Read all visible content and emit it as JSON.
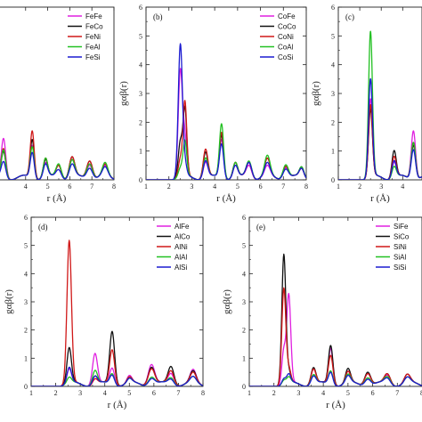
{
  "chart_data": [
    {
      "id": "a",
      "type": "line",
      "tag": "",
      "xlabel": "r (Å)",
      "ylabel": "",
      "xlim": [
        2.8,
        8
      ],
      "ylim": [
        0,
        6
      ],
      "x_ticks": [
        4,
        5,
        6,
        7,
        8
      ],
      "y_ticks": [],
      "legend": "top-right",
      "series": [
        {
          "name": "FeFe",
          "color": "#e020e0",
          "peaks": [
            [
              3.0,
              1.35,
              0.1
            ],
            [
              4.3,
              1.15,
              0.09
            ],
            [
              4.9,
              0.5,
              0.1
            ],
            [
              5.5,
              0.45,
              0.12
            ],
            [
              6.1,
              0.6,
              0.12
            ],
            [
              6.9,
              0.5,
              0.13
            ],
            [
              7.6,
              0.35,
              0.12
            ]
          ]
        },
        {
          "name": "FeCo",
          "color": "#111111",
          "peaks": [
            [
              3.0,
              0.9,
              0.1
            ],
            [
              4.3,
              1.35,
              0.09
            ],
            [
              4.9,
              0.6,
              0.1
            ],
            [
              5.5,
              0.45,
              0.12
            ],
            [
              6.1,
              0.7,
              0.12
            ],
            [
              6.9,
              0.65,
              0.13
            ],
            [
              7.6,
              0.4,
              0.12
            ]
          ]
        },
        {
          "name": "FeNi",
          "color": "#d01818",
          "peaks": [
            [
              3.0,
              1.0,
              0.1
            ],
            [
              4.3,
              1.65,
              0.09
            ],
            [
              4.9,
              0.65,
              0.1
            ],
            [
              5.5,
              0.45,
              0.12
            ],
            [
              6.1,
              0.7,
              0.12
            ],
            [
              6.9,
              0.65,
              0.13
            ],
            [
              7.6,
              0.4,
              0.12
            ]
          ]
        },
        {
          "name": "FeAl",
          "color": "#22c022",
          "peaks": [
            [
              3.0,
              0.95,
              0.1
            ],
            [
              4.3,
              1.1,
              0.09
            ],
            [
              4.9,
              0.65,
              0.1
            ],
            [
              5.5,
              0.5,
              0.12
            ],
            [
              6.1,
              0.6,
              0.12
            ],
            [
              6.9,
              0.55,
              0.13
            ],
            [
              7.6,
              0.45,
              0.12
            ]
          ]
        },
        {
          "name": "FeSi",
          "color": "#1a1ad0",
          "peaks": [
            [
              3.0,
              0.55,
              0.1
            ],
            [
              4.3,
              0.9,
              0.09
            ],
            [
              4.9,
              0.45,
              0.1
            ],
            [
              5.5,
              0.3,
              0.12
            ],
            [
              6.1,
              0.45,
              0.12
            ],
            [
              6.9,
              0.4,
              0.13
            ],
            [
              7.6,
              0.3,
              0.12
            ]
          ]
        }
      ]
    },
    {
      "id": "b",
      "type": "line",
      "tag": "(b)",
      "xlabel": "r (Å)",
      "ylabel": "gαβ(r)",
      "xlim": [
        1,
        8
      ],
      "ylim": [
        0,
        6
      ],
      "x_ticks": [
        1,
        2,
        3,
        4,
        5,
        6,
        7,
        8
      ],
      "y_ticks": [
        0,
        1,
        2,
        3,
        4,
        5,
        6
      ],
      "legend": "top-right",
      "series": [
        {
          "name": "CoFe",
          "color": "#e020e0",
          "peaks": [
            [
              2.5,
              3.7,
              0.09
            ],
            [
              2.7,
              1.3,
              0.08
            ],
            [
              3.6,
              0.55,
              0.1
            ],
            [
              4.3,
              1.35,
              0.09
            ],
            [
              4.9,
              0.4,
              0.1
            ],
            [
              5.5,
              0.45,
              0.12
            ],
            [
              6.3,
              0.35,
              0.12
            ],
            [
              7.1,
              0.4,
              0.12
            ],
            [
              7.8,
              0.3,
              0.1
            ]
          ]
        },
        {
          "name": "CoCo",
          "color": "#111111",
          "peaks": [
            [
              2.5,
              1.2,
              0.09
            ],
            [
              2.7,
              2.3,
              0.08
            ],
            [
              3.6,
              0.9,
              0.1
            ],
            [
              4.3,
              1.5,
              0.09
            ],
            [
              4.9,
              0.5,
              0.1
            ],
            [
              5.5,
              0.55,
              0.12
            ],
            [
              6.3,
              0.6,
              0.12
            ],
            [
              7.1,
              0.45,
              0.12
            ],
            [
              7.8,
              0.35,
              0.1
            ]
          ]
        },
        {
          "name": "CoNi",
          "color": "#d01818",
          "peaks": [
            [
              2.5,
              0.6,
              0.09
            ],
            [
              2.7,
              2.55,
              0.08
            ],
            [
              3.6,
              1.0,
              0.1
            ],
            [
              4.3,
              1.6,
              0.09
            ],
            [
              4.9,
              0.5,
              0.1
            ],
            [
              5.5,
              0.55,
              0.12
            ],
            [
              6.3,
              0.6,
              0.12
            ],
            [
              7.1,
              0.45,
              0.12
            ],
            [
              7.8,
              0.3,
              0.1
            ]
          ]
        },
        {
          "name": "CoAl",
          "color": "#22c022",
          "peaks": [
            [
              2.5,
              0.3,
              0.09
            ],
            [
              2.7,
              1.2,
              0.08
            ],
            [
              3.6,
              0.7,
              0.1
            ],
            [
              4.3,
              1.9,
              0.09
            ],
            [
              4.9,
              0.5,
              0.1
            ],
            [
              5.5,
              0.6,
              0.12
            ],
            [
              6.3,
              0.7,
              0.12
            ],
            [
              7.1,
              0.5,
              0.12
            ],
            [
              7.8,
              0.35,
              0.1
            ]
          ]
        },
        {
          "name": "CoSi",
          "color": "#1a1ad0",
          "peaks": [
            [
              2.5,
              4.6,
              0.09
            ],
            [
              2.7,
              0.4,
              0.08
            ],
            [
              3.6,
              0.6,
              0.1
            ],
            [
              4.3,
              1.2,
              0.09
            ],
            [
              4.9,
              0.4,
              0.1
            ],
            [
              5.5,
              0.55,
              0.12
            ],
            [
              6.3,
              0.45,
              0.12
            ],
            [
              7.1,
              0.35,
              0.12
            ],
            [
              7.8,
              0.3,
              0.1
            ]
          ]
        }
      ]
    },
    {
      "id": "c",
      "type": "line",
      "tag": "(c)",
      "xlabel": "r (Å)",
      "ylabel": "gαβ(r)",
      "xlim": [
        1,
        4.9
      ],
      "ylim": [
        0,
        6
      ],
      "x_ticks": [
        1,
        2,
        3,
        4
      ],
      "y_ticks": [
        0,
        1,
        2,
        3,
        4,
        5,
        6
      ],
      "legend": "",
      "series": [
        {
          "name": "",
          "color": "#e020e0",
          "peaks": [
            [
              2.5,
              2.7,
              0.09
            ],
            [
              3.6,
              0.55,
              0.1
            ],
            [
              4.5,
              1.7,
              0.1
            ]
          ]
        },
        {
          "name": "",
          "color": "#111111",
          "peaks": [
            [
              2.5,
              2.35,
              0.09
            ],
            [
              3.6,
              0.95,
              0.1
            ],
            [
              4.5,
              1.2,
              0.1
            ]
          ]
        },
        {
          "name": "",
          "color": "#d01818",
          "peaks": [
            [
              2.5,
              2.5,
              0.09
            ],
            [
              3.6,
              0.75,
              0.1
            ],
            [
              4.5,
              1.3,
              0.1
            ]
          ]
        },
        {
          "name": "",
          "color": "#22c022",
          "peaks": [
            [
              2.5,
              5.05,
              0.09
            ],
            [
              3.6,
              0.4,
              0.1
            ],
            [
              4.5,
              1.3,
              0.1
            ]
          ]
        },
        {
          "name": "",
          "color": "#1a1ad0",
          "peaks": [
            [
              2.5,
              3.4,
              0.09
            ],
            [
              3.6,
              0.6,
              0.1
            ],
            [
              4.5,
              1.05,
              0.1
            ]
          ]
        }
      ]
    },
    {
      "id": "d",
      "type": "line",
      "tag": "(d)",
      "xlabel": "r (Å)",
      "ylabel": "gαβ(r)",
      "xlim": [
        1,
        8
      ],
      "ylim": [
        0,
        6
      ],
      "x_ticks": [
        1,
        2,
        3,
        4,
        5,
        6,
        7,
        8
      ],
      "y_ticks": [
        0,
        1,
        2,
        3,
        4,
        5,
        6
      ],
      "legend": "top-right",
      "series": [
        {
          "name": "AlFe",
          "color": "#e020e0",
          "peaks": [
            [
              2.55,
              0.5,
              0.09
            ],
            [
              3.6,
              1.1,
              0.1
            ],
            [
              4.3,
              0.6,
              0.1
            ],
            [
              5.0,
              0.25,
              0.1
            ],
            [
              5.9,
              0.75,
              0.13
            ],
            [
              6.7,
              0.4,
              0.12
            ],
            [
              7.6,
              0.45,
              0.12
            ]
          ]
        },
        {
          "name": "AlCo",
          "color": "#111111",
          "peaks": [
            [
              2.55,
              1.25,
              0.09
            ],
            [
              3.6,
              0.3,
              0.1
            ],
            [
              4.3,
              1.9,
              0.1
            ],
            [
              5.0,
              0.2,
              0.1
            ],
            [
              5.9,
              0.65,
              0.13
            ],
            [
              6.7,
              0.65,
              0.12
            ],
            [
              7.6,
              0.4,
              0.12
            ]
          ]
        },
        {
          "name": "AlNi",
          "color": "#d01818",
          "peaks": [
            [
              2.55,
              5.05,
              0.09
            ],
            [
              3.6,
              0.2,
              0.1
            ],
            [
              4.3,
              1.25,
              0.1
            ],
            [
              5.0,
              0.2,
              0.1
            ],
            [
              5.9,
              0.6,
              0.13
            ],
            [
              6.7,
              0.5,
              0.12
            ],
            [
              7.6,
              0.35,
              0.12
            ]
          ]
        },
        {
          "name": "AlAl",
          "color": "#22c022",
          "peaks": [
            [
              2.55,
              0.2,
              0.09
            ],
            [
              3.6,
              0.5,
              0.1
            ],
            [
              4.3,
              0.4,
              0.1
            ],
            [
              5.0,
              0.15,
              0.1
            ],
            [
              5.9,
              0.3,
              0.13
            ],
            [
              6.7,
              0.25,
              0.12
            ],
            [
              7.6,
              0.2,
              0.12
            ]
          ]
        },
        {
          "name": "AlSi",
          "color": "#1a1ad0",
          "peaks": [
            [
              2.55,
              0.55,
              0.09
            ],
            [
              3.6,
              0.3,
              0.1
            ],
            [
              4.3,
              0.35,
              0.1
            ],
            [
              5.0,
              0.15,
              0.1
            ],
            [
              5.9,
              0.25,
              0.13
            ],
            [
              6.7,
              0.2,
              0.12
            ],
            [
              7.6,
              0.2,
              0.12
            ]
          ]
        }
      ]
    },
    {
      "id": "e",
      "type": "line",
      "tag": "(e)",
      "xlabel": "r (Å)",
      "ylabel": "gαβ(r)",
      "xlim": [
        1,
        8
      ],
      "ylim": [
        0,
        6
      ],
      "x_ticks": [
        1,
        2,
        3,
        4,
        5,
        6,
        7,
        8
      ],
      "y_ticks": [
        0,
        1,
        2,
        3,
        4,
        5,
        6
      ],
      "legend": "top-right",
      "series": [
        {
          "name": "SiFe",
          "color": "#e020e0",
          "peaks": [
            [
              2.4,
              1.2,
              0.08
            ],
            [
              2.6,
              3.1,
              0.08
            ],
            [
              3.6,
              0.55,
              0.1
            ],
            [
              4.3,
              1.3,
              0.09
            ],
            [
              5.0,
              0.4,
              0.1
            ],
            [
              5.8,
              0.45,
              0.12
            ],
            [
              6.6,
              0.3,
              0.12
            ],
            [
              7.4,
              0.3,
              0.12
            ]
          ]
        },
        {
          "name": "SiCo",
          "color": "#111111",
          "peaks": [
            [
              2.4,
              4.6,
              0.08
            ],
            [
              2.6,
              0.4,
              0.08
            ],
            [
              3.6,
              0.6,
              0.1
            ],
            [
              4.3,
              1.4,
              0.09
            ],
            [
              5.0,
              0.5,
              0.1
            ],
            [
              5.8,
              0.5,
              0.12
            ],
            [
              6.6,
              0.35,
              0.12
            ],
            [
              7.4,
              0.3,
              0.12
            ]
          ]
        },
        {
          "name": "SiNi",
          "color": "#d01818",
          "peaks": [
            [
              2.4,
              3.4,
              0.08
            ],
            [
              2.6,
              0.5,
              0.08
            ],
            [
              3.6,
              0.55,
              0.1
            ],
            [
              4.3,
              1.05,
              0.09
            ],
            [
              5.0,
              0.4,
              0.1
            ],
            [
              5.8,
              0.45,
              0.12
            ],
            [
              6.6,
              0.35,
              0.12
            ],
            [
              7.4,
              0.3,
              0.12
            ]
          ]
        },
        {
          "name": "SiAl",
          "color": "#22c022",
          "peaks": [
            [
              2.4,
              0.15,
              0.08
            ],
            [
              2.6,
              0.2,
              0.08
            ],
            [
              3.6,
              0.35,
              0.1
            ],
            [
              4.3,
              0.5,
              0.09
            ],
            [
              5.0,
              0.3,
              0.1
            ],
            [
              5.8,
              0.3,
              0.12
            ],
            [
              6.6,
              0.25,
              0.12
            ],
            [
              7.4,
              0.2,
              0.12
            ]
          ]
        },
        {
          "name": "SiSi",
          "color": "#1a1ad0",
          "peaks": [
            [
              2.4,
              0.2,
              0.08
            ],
            [
              2.6,
              0.3,
              0.08
            ],
            [
              3.6,
              0.3,
              0.1
            ],
            [
              4.3,
              0.45,
              0.09
            ],
            [
              5.0,
              0.25,
              0.1
            ],
            [
              5.8,
              0.25,
              0.12
            ],
            [
              6.6,
              0.2,
              0.12
            ],
            [
              7.4,
              0.2,
              0.12
            ]
          ]
        }
      ]
    }
  ]
}
